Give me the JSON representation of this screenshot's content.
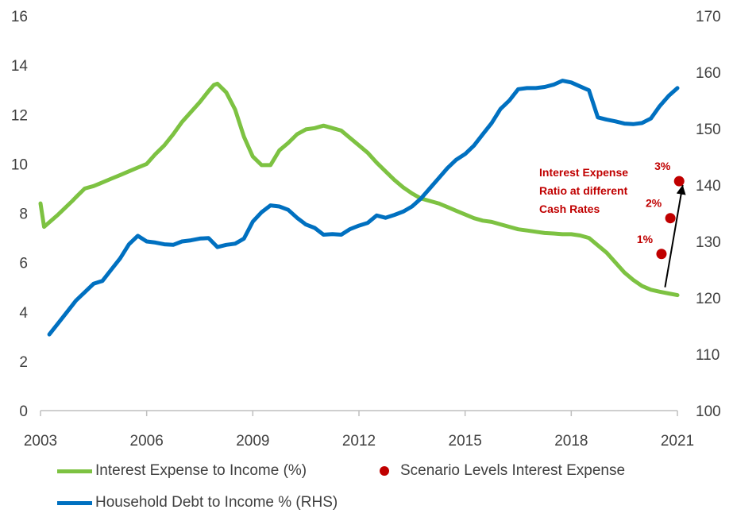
{
  "chart_data": {
    "type": "line",
    "title": "",
    "xlabel": "",
    "ylabel": "",
    "y2label": "",
    "x_ticks": [
      "2003",
      "2006",
      "2009",
      "2012",
      "2015",
      "2018",
      "2021"
    ],
    "y_left_ticks": [
      "0",
      "2",
      "4",
      "6",
      "8",
      "10",
      "12",
      "14",
      "16"
    ],
    "y_right_ticks": [
      "100",
      "110",
      "120",
      "130",
      "140",
      "150",
      "160",
      "170"
    ],
    "ylim_left": [
      0,
      16
    ],
    "ylim_right": [
      100,
      170
    ],
    "xlim": [
      2003,
      2021
    ],
    "series": [
      {
        "name": "Interest Expense to Income (%)",
        "axis": "left",
        "color": "#7dc242",
        "points": [
          [
            2003.0,
            8.4
          ],
          [
            2003.1,
            7.45
          ],
          [
            2003.5,
            7.95
          ],
          [
            2003.9,
            8.5
          ],
          [
            2004.0,
            8.65
          ],
          [
            2004.25,
            9.0
          ],
          [
            2004.5,
            9.1
          ],
          [
            2004.75,
            9.25
          ],
          [
            2005.0,
            9.4
          ],
          [
            2005.25,
            9.55
          ],
          [
            2005.5,
            9.7
          ],
          [
            2005.75,
            9.85
          ],
          [
            2006.0,
            10.0
          ],
          [
            2006.25,
            10.4
          ],
          [
            2006.5,
            10.75
          ],
          [
            2006.75,
            11.2
          ],
          [
            2007.0,
            11.7
          ],
          [
            2007.25,
            12.1
          ],
          [
            2007.5,
            12.5
          ],
          [
            2007.75,
            12.95
          ],
          [
            2007.9,
            13.2
          ],
          [
            2008.0,
            13.25
          ],
          [
            2008.25,
            12.9
          ],
          [
            2008.5,
            12.2
          ],
          [
            2008.75,
            11.1
          ],
          [
            2009.0,
            10.3
          ],
          [
            2009.25,
            9.95
          ],
          [
            2009.5,
            9.95
          ],
          [
            2009.75,
            10.55
          ],
          [
            2010.0,
            10.85
          ],
          [
            2010.25,
            11.2
          ],
          [
            2010.5,
            11.4
          ],
          [
            2010.75,
            11.45
          ],
          [
            2011.0,
            11.55
          ],
          [
            2011.25,
            11.45
          ],
          [
            2011.5,
            11.35
          ],
          [
            2011.75,
            11.05
          ],
          [
            2012.0,
            10.75
          ],
          [
            2012.25,
            10.45
          ],
          [
            2012.5,
            10.05
          ],
          [
            2012.75,
            9.7
          ],
          [
            2013.0,
            9.35
          ],
          [
            2013.25,
            9.05
          ],
          [
            2013.5,
            8.8
          ],
          [
            2013.75,
            8.6
          ],
          [
            2014.0,
            8.5
          ],
          [
            2014.25,
            8.4
          ],
          [
            2014.5,
            8.25
          ],
          [
            2014.75,
            8.1
          ],
          [
            2015.0,
            7.95
          ],
          [
            2015.25,
            7.8
          ],
          [
            2015.5,
            7.7
          ],
          [
            2015.75,
            7.65
          ],
          [
            2016.0,
            7.55
          ],
          [
            2016.25,
            7.45
          ],
          [
            2016.5,
            7.35
          ],
          [
            2016.75,
            7.3
          ],
          [
            2017.0,
            7.25
          ],
          [
            2017.25,
            7.2
          ],
          [
            2017.5,
            7.18
          ],
          [
            2017.75,
            7.15
          ],
          [
            2018.0,
            7.15
          ],
          [
            2018.25,
            7.1
          ],
          [
            2018.5,
            7.0
          ],
          [
            2018.75,
            6.7
          ],
          [
            2019.0,
            6.4
          ],
          [
            2019.25,
            6.0
          ],
          [
            2019.5,
            5.6
          ],
          [
            2019.75,
            5.3
          ],
          [
            2020.0,
            5.05
          ],
          [
            2020.25,
            4.9
          ],
          [
            2020.5,
            4.82
          ],
          [
            2020.75,
            4.75
          ],
          [
            2021.0,
            4.68
          ]
        ]
      },
      {
        "name": "Household Debt to Income % (RHS)",
        "axis": "right",
        "color": "#0070c0",
        "points": [
          [
            2003.25,
            113.5
          ],
          [
            2003.5,
            115.5
          ],
          [
            2003.75,
            117.5
          ],
          [
            2004.0,
            119.5
          ],
          [
            2004.25,
            121.0
          ],
          [
            2004.5,
            122.5
          ],
          [
            2004.75,
            123.0
          ],
          [
            2005.0,
            125.0
          ],
          [
            2005.25,
            127.0
          ],
          [
            2005.5,
            129.5
          ],
          [
            2005.75,
            131.0
          ],
          [
            2006.0,
            130.0
          ],
          [
            2006.25,
            129.8
          ],
          [
            2006.5,
            129.5
          ],
          [
            2006.75,
            129.4
          ],
          [
            2007.0,
            130.0
          ],
          [
            2007.25,
            130.2
          ],
          [
            2007.5,
            130.5
          ],
          [
            2007.75,
            130.6
          ],
          [
            2008.0,
            129.0
          ],
          [
            2008.25,
            129.4
          ],
          [
            2008.5,
            129.6
          ],
          [
            2008.75,
            130.5
          ],
          [
            2009.0,
            133.5
          ],
          [
            2009.25,
            135.2
          ],
          [
            2009.5,
            136.4
          ],
          [
            2009.75,
            136.2
          ],
          [
            2010.0,
            135.6
          ],
          [
            2010.25,
            134.2
          ],
          [
            2010.5,
            133.0
          ],
          [
            2010.75,
            132.4
          ],
          [
            2011.0,
            131.2
          ],
          [
            2011.25,
            131.3
          ],
          [
            2011.5,
            131.2
          ],
          [
            2011.75,
            132.2
          ],
          [
            2012.0,
            132.8
          ],
          [
            2012.25,
            133.3
          ],
          [
            2012.5,
            134.6
          ],
          [
            2012.75,
            134.2
          ],
          [
            2013.0,
            134.7
          ],
          [
            2013.25,
            135.3
          ],
          [
            2013.5,
            136.2
          ],
          [
            2013.75,
            137.6
          ],
          [
            2014.0,
            139.4
          ],
          [
            2014.25,
            141.2
          ],
          [
            2014.5,
            143.0
          ],
          [
            2014.75,
            144.5
          ],
          [
            2015.0,
            145.5
          ],
          [
            2015.25,
            147.0
          ],
          [
            2015.5,
            149.0
          ],
          [
            2015.75,
            151.0
          ],
          [
            2016.0,
            153.5
          ],
          [
            2016.25,
            155.0
          ],
          [
            2016.5,
            157.0
          ],
          [
            2016.75,
            157.2
          ],
          [
            2017.0,
            157.2
          ],
          [
            2017.25,
            157.4
          ],
          [
            2017.5,
            157.8
          ],
          [
            2017.75,
            158.5
          ],
          [
            2018.0,
            158.2
          ],
          [
            2018.25,
            157.5
          ],
          [
            2018.5,
            156.8
          ],
          [
            2018.75,
            152.0
          ],
          [
            2019.0,
            151.6
          ],
          [
            2019.25,
            151.3
          ],
          [
            2019.5,
            150.9
          ],
          [
            2019.75,
            150.8
          ],
          [
            2020.0,
            151.0
          ],
          [
            2020.25,
            151.8
          ],
          [
            2020.5,
            154.0
          ],
          [
            2020.75,
            155.8
          ],
          [
            2021.0,
            157.2
          ]
        ]
      }
    ],
    "scenario": {
      "name": "Scenario Levels Interest Expense",
      "color": "#c00000",
      "points": [
        {
          "x": 2020.55,
          "y": 6.35,
          "label": "1%"
        },
        {
          "x": 2020.8,
          "y": 7.8,
          "label": "2%"
        },
        {
          "x": 2021.05,
          "y": 9.3,
          "label": "3%"
        }
      ]
    },
    "annotation": {
      "lines": [
        "Interest Expense",
        "Ratio at different",
        "Cash Rates"
      ]
    },
    "arrow": {
      "from": [
        2020.65,
        5.0
      ],
      "to": [
        2021.15,
        9.15
      ]
    }
  }
}
